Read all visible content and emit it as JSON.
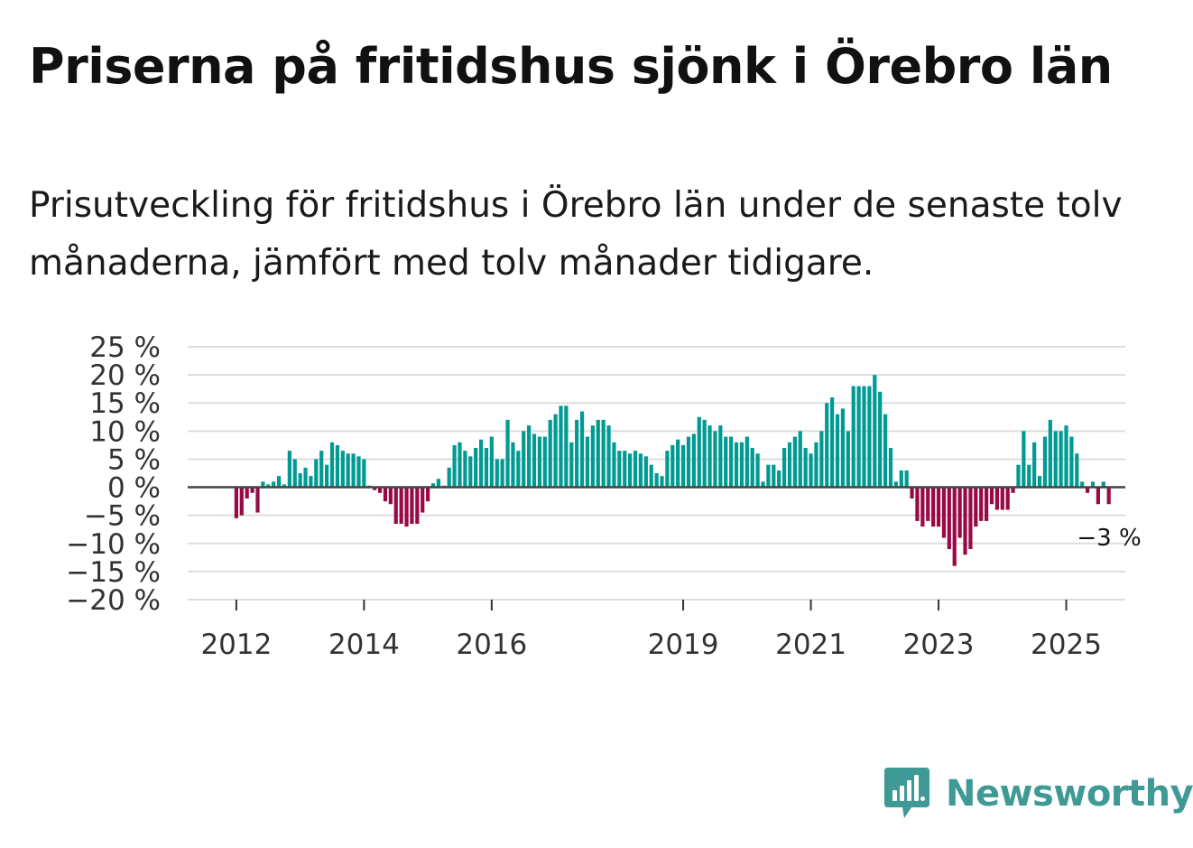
{
  "header": {
    "title": "Priserna på fritidshus sjönk i Örebro län",
    "subtitle": "Prisutveckling för fritidshus i Örebro län under de senaste tolv månaderna, jämfört med tolv månader tidigare."
  },
  "brand": {
    "name": "Newsworthy"
  },
  "colors": {
    "positive": "#009a93",
    "negative": "#970a45",
    "grid": "#dddddd",
    "zero": "#444444",
    "brand": "#3f9a95"
  },
  "chart_data": {
    "type": "bar",
    "title": "Priserna på fritidshus sjönk i Örebro län",
    "ylabel": "",
    "xlabel": "",
    "ylim": [
      -20,
      25
    ],
    "y_ticks": [
      25,
      20,
      15,
      10,
      5,
      0,
      -5,
      -10,
      -15,
      -20
    ],
    "y_tick_labels": [
      "25 %",
      "20 %",
      "15 %",
      "10 %",
      "5 %",
      "0 %",
      "−5 %",
      "−10 %",
      "−15 %",
      "−20 %"
    ],
    "x_ticks": [
      {
        "label": "2012",
        "index": 1
      },
      {
        "label": "2014",
        "index": 25
      },
      {
        "label": "2016",
        "index": 49
      },
      {
        "label": "2019",
        "index": 85
      },
      {
        "label": "2021",
        "index": 109
      },
      {
        "label": "2023",
        "index": 133
      },
      {
        "label": "2025",
        "index": 157
      }
    ],
    "start": "2011-12",
    "values": [
      0,
      -5.5,
      -5,
      -2,
      -1,
      -4.5,
      1,
      0.5,
      1,
      2,
      0.5,
      6.5,
      5,
      2.5,
      3.5,
      2,
      5,
      6.5,
      4,
      8,
      7.5,
      6.5,
      6,
      6,
      5.5,
      5,
      0.3,
      -0.5,
      -1,
      -2.5,
      -3,
      -6.5,
      -6.5,
      -7,
      -6.5,
      -6.5,
      -4.5,
      -2.5,
      0.7,
      1.5,
      0.3,
      3.5,
      7.5,
      8,
      6.5,
      5.5,
      7,
      8.5,
      7,
      9,
      5,
      5,
      12,
      8,
      6.5,
      10,
      11,
      9.5,
      9,
      9,
      12,
      13,
      14.5,
      14.5,
      8,
      12,
      13.5,
      9,
      11,
      12,
      12,
      11,
      8,
      6.5,
      6.5,
      6,
      6.5,
      6,
      5.5,
      4,
      2.5,
      2,
      6.5,
      7.5,
      8.5,
      7.5,
      9,
      9.5,
      12.5,
      12,
      11,
      10,
      11,
      9,
      9,
      8,
      8,
      9,
      7,
      6,
      1,
      4,
      4,
      3,
      7,
      8,
      9,
      10,
      7,
      6,
      8,
      10,
      15,
      16,
      13,
      14,
      10,
      18,
      18,
      18,
      18,
      20,
      17,
      13,
      7,
      1,
      3,
      3,
      -2,
      -6,
      -7,
      -6,
      -7,
      -7,
      -9,
      -11,
      -14,
      -9,
      -12,
      -11,
      -7,
      -6,
      -6,
      -3,
      -4,
      -4,
      -4,
      -1,
      4,
      10,
      4,
      8,
      2,
      9,
      12,
      10,
      10,
      11,
      9,
      6,
      1,
      -1,
      1,
      -3,
      1,
      -3
    ],
    "annotation": {
      "label": "−3 %",
      "value": -3
    },
    "grid": true,
    "legend": "none"
  }
}
